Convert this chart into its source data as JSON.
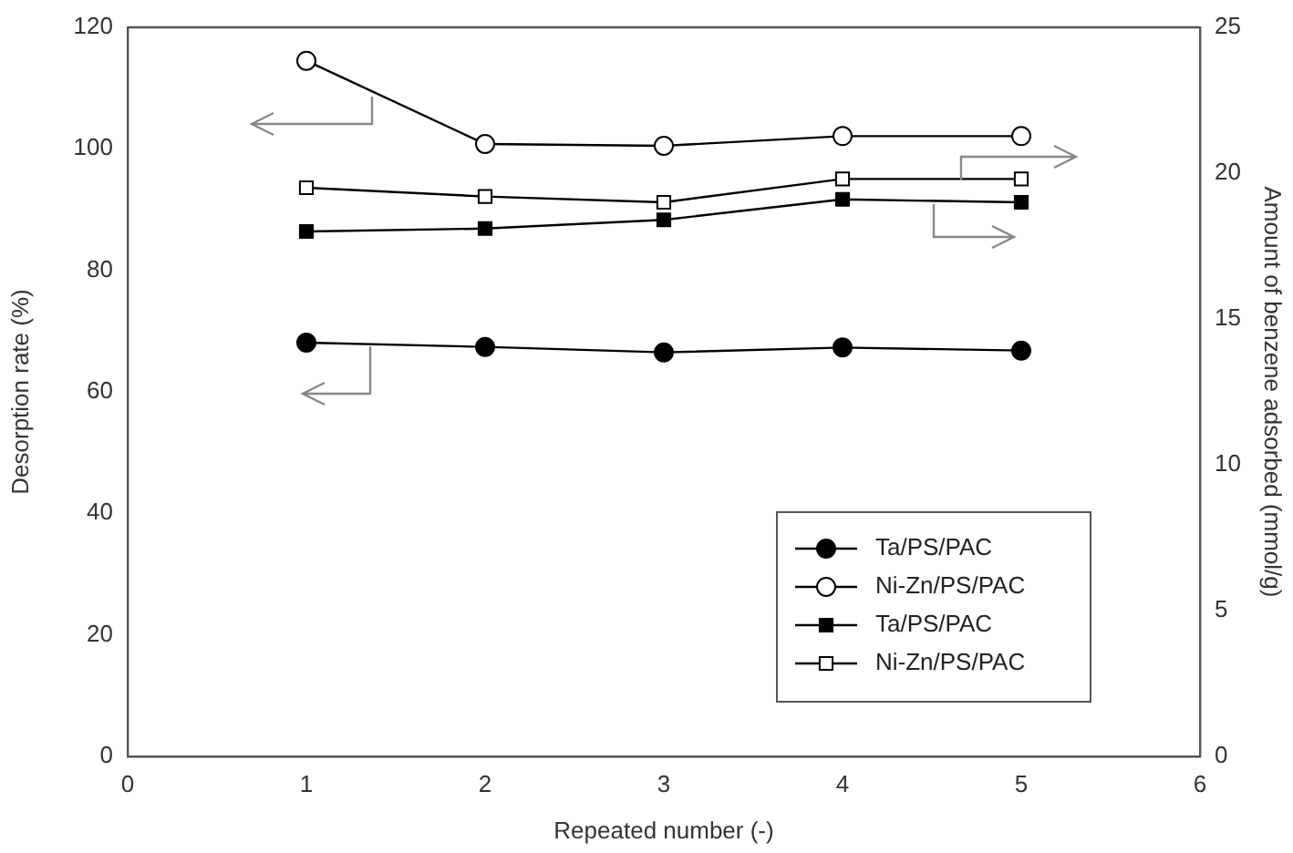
{
  "chart_data": {
    "type": "line",
    "xlabel": "Repeated number (-)",
    "ylabel": "Desorption rate (%)",
    "y2label": "Amount of benzene adsorbed (mmol/g)",
    "x": [
      1,
      2,
      3,
      4,
      5
    ],
    "series": [
      {
        "name": "Ta/PS/PAC",
        "color": "#000000",
        "marker": "circle",
        "values": [
          68.1,
          67.4,
          66.5,
          67.3,
          66.8
        ]
      },
      {
        "name": "Ni-Zn/PS/PAC",
        "color": "#000000",
        "marker": "circle",
        "values": [
          114.5,
          100.8,
          100.5,
          102.1,
          102.1
        ]
      },
      {
        "name": "Ta/PS/PAC",
        "color": "#000000",
        "marker": "square",
        "axis": "y2",
        "values": [
          18.0,
          18.1,
          18.4,
          19.1,
          19.0
        ]
      },
      {
        "name": "Ni-Zn/PS/PAC",
        "color": "#000000",
        "marker": "square",
        "axis": "y2",
        "values": [
          19.5,
          19.2,
          19.0,
          19.8,
          19.8
        ]
      }
    ],
    "xlim": [
      0,
      6
    ],
    "xticks": [
      0,
      1,
      2,
      3,
      4,
      5,
      6
    ],
    "ylim": [
      0,
      120
    ],
    "yticks": [
      0,
      20,
      40,
      60,
      80,
      100,
      120
    ],
    "y2lim": [
      0,
      25
    ],
    "y2ticks": [
      0,
      5,
      10,
      15,
      20,
      25
    ],
    "grid": false,
    "legend": "bottom right",
    "line_style": "solid"
  }
}
